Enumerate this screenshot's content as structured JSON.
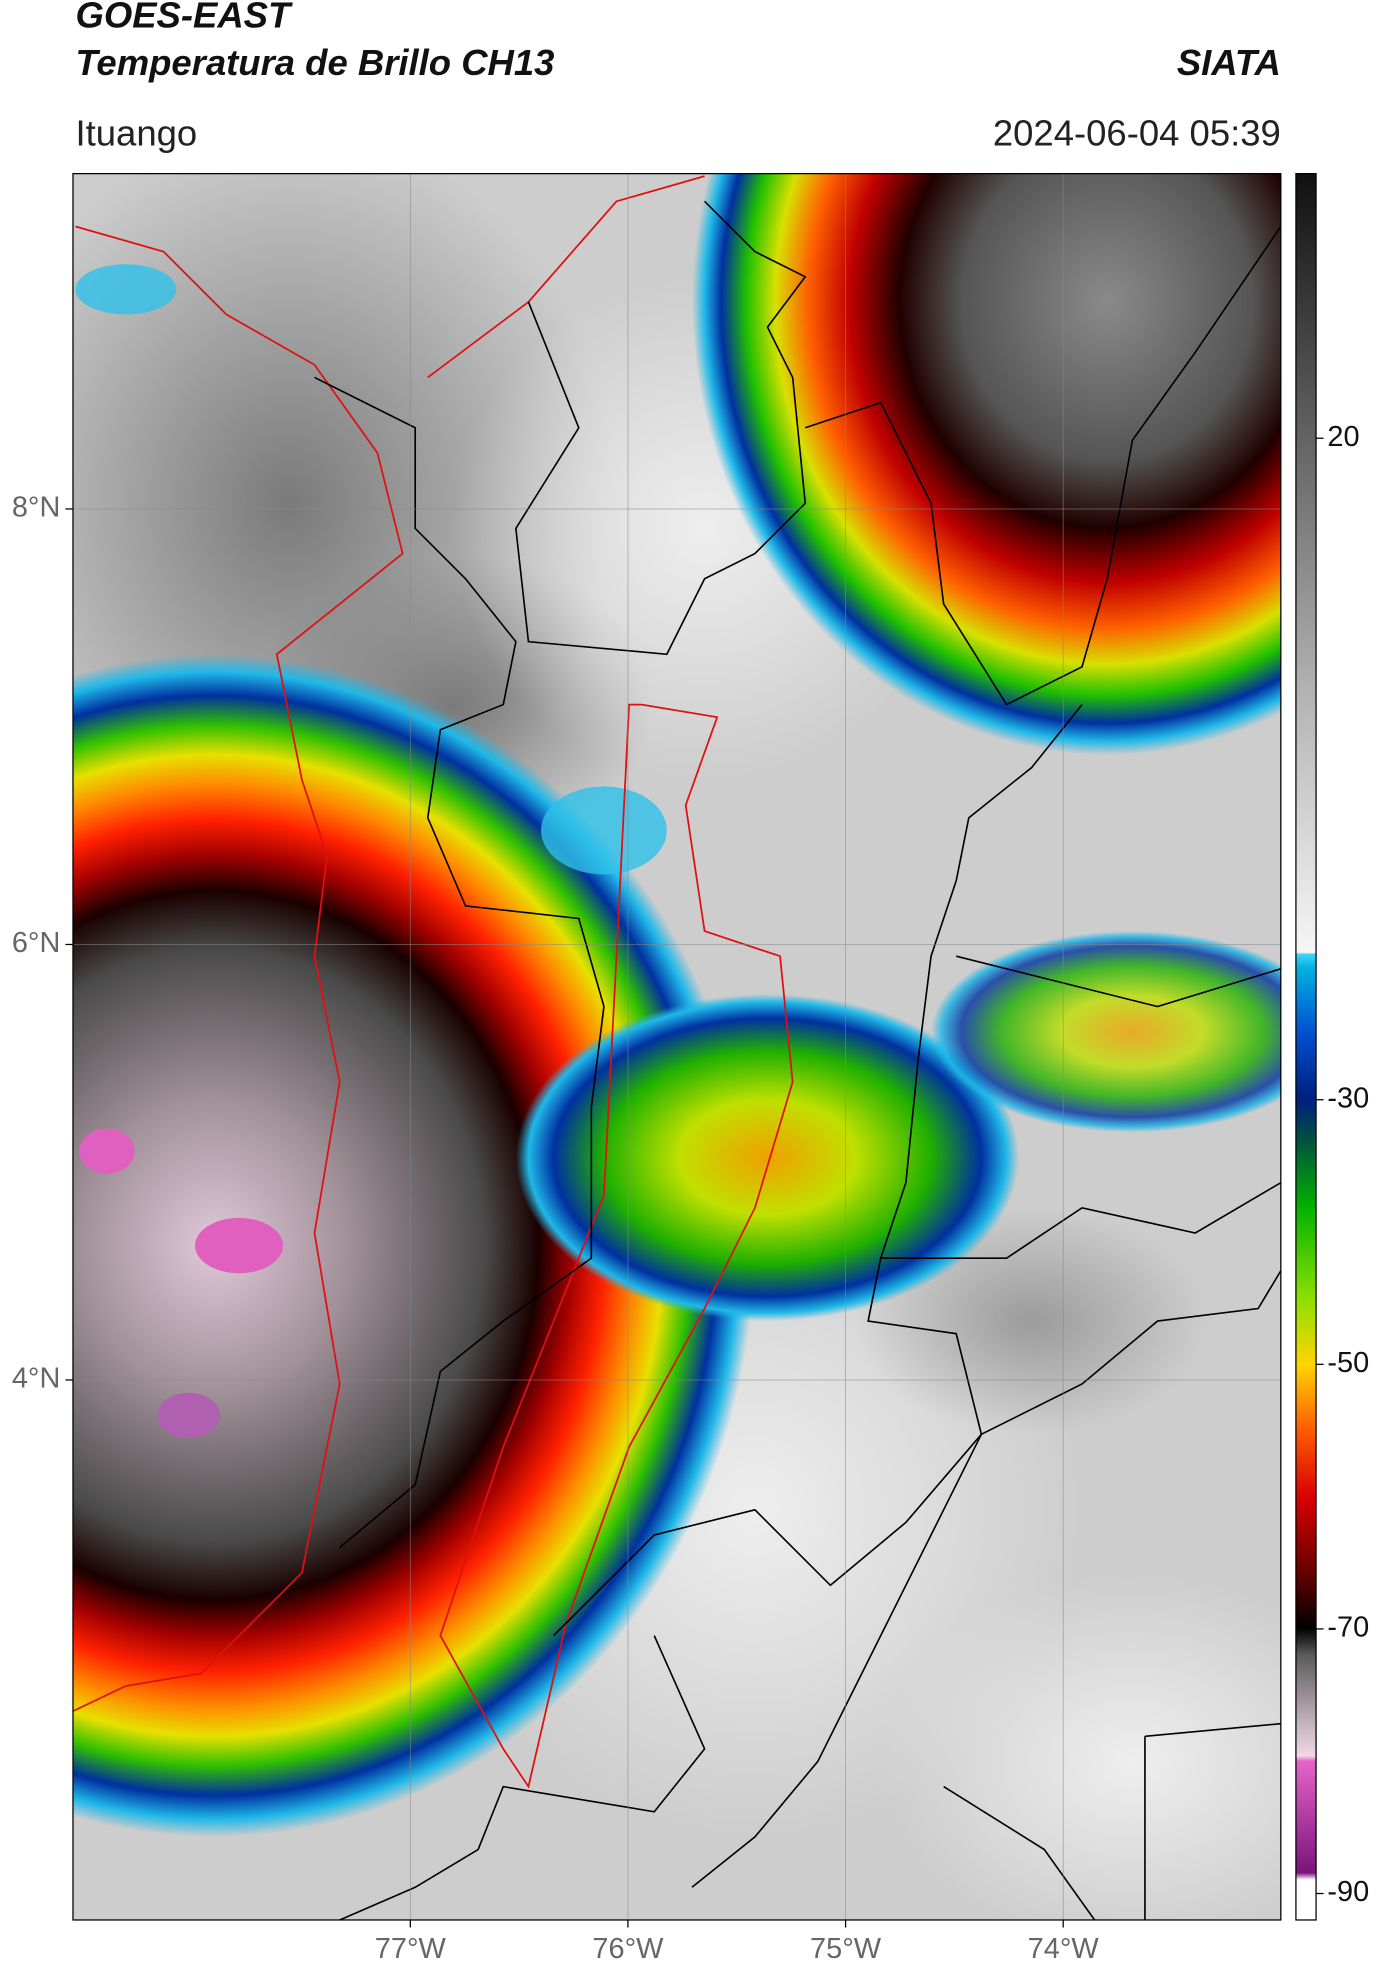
{
  "header": {
    "title": "GOES-EAST",
    "subtitle": "Temperatura de Brillo CH13",
    "source": "SIATA",
    "location": "Ituango",
    "datetime": "2024-06-04 05:39"
  },
  "map": {
    "xlim": [
      -78.55,
      -73.0
    ],
    "ylim": [
      1.52,
      9.54
    ],
    "xticks": [
      {
        "value": -77,
        "label": "77°W"
      },
      {
        "value": -76,
        "label": "76°W"
      },
      {
        "value": -75,
        "label": "75°W"
      },
      {
        "value": -74,
        "label": "74°W"
      }
    ],
    "yticks": [
      {
        "value": 8,
        "label": "8°N"
      },
      {
        "value": 6,
        "label": "6°N"
      },
      {
        "value": 4,
        "label": "4°N"
      }
    ],
    "grid": true
  },
  "colorbar": {
    "lim": [
      -92,
      40
    ],
    "ticks": [
      20,
      -30,
      -50,
      -70,
      -90
    ]
  }
}
